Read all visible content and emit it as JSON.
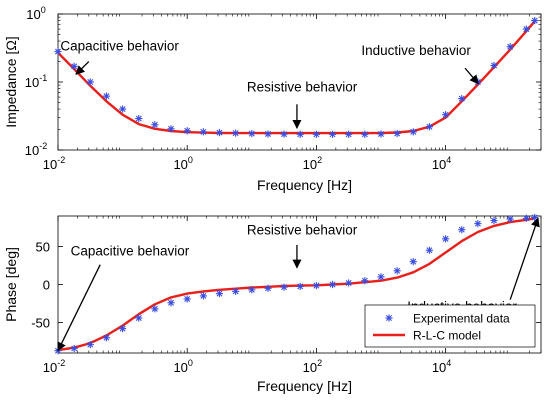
{
  "chart_data": [
    {
      "type": "line",
      "xscale": "log",
      "yscale": "log",
      "xlim": [
        0.01,
        300000
      ],
      "ylim": [
        0.01,
        1
      ],
      "xlabel": "Frequency [Hz]",
      "ylabel": "Impedance [Ω]",
      "xticks": [
        {
          "value": 0.01,
          "base": "10",
          "exp": "-2"
        },
        {
          "value": 1,
          "base": "10",
          "exp": "0"
        },
        {
          "value": 100,
          "base": "10",
          "exp": "2"
        },
        {
          "value": 10000,
          "base": "10",
          "exp": "4"
        }
      ],
      "yticks": [
        {
          "value": 0.01,
          "base": "10",
          "exp": "-2"
        },
        {
          "value": 0.1,
          "base": "10",
          "exp": "-1"
        },
        {
          "value": 1,
          "base": "10",
          "exp": "0"
        }
      ],
      "series": [
        {
          "name": "Experimental data",
          "style": "marker",
          "marker": "asterisk",
          "color": "#3a4de0",
          "x": [
            0.01,
            0.0178,
            0.0316,
            0.0562,
            0.1,
            0.178,
            0.316,
            0.562,
            1,
            1.78,
            3.16,
            5.62,
            10,
            17.8,
            31.6,
            56.2,
            100,
            178,
            316,
            562,
            1000,
            1780,
            3160,
            5620,
            10000,
            17800,
            31600,
            56200,
            100000,
            178000,
            240000
          ],
          "y": [
            0.28,
            0.17,
            0.1,
            0.062,
            0.04,
            0.029,
            0.0235,
            0.0205,
            0.0192,
            0.0185,
            0.018,
            0.0177,
            0.0174,
            0.0172,
            0.0171,
            0.017,
            0.017,
            0.017,
            0.017,
            0.017,
            0.0172,
            0.0175,
            0.0185,
            0.022,
            0.033,
            0.057,
            0.1,
            0.175,
            0.33,
            0.6,
            0.8
          ]
        },
        {
          "name": "R-L-C model",
          "style": "line",
          "color": "#e8201c",
          "x": [
            0.01,
            0.0178,
            0.0316,
            0.0562,
            0.1,
            0.178,
            0.316,
            0.562,
            1,
            1.78,
            3.16,
            5.62,
            10,
            17.8,
            31.6,
            56.2,
            100,
            178,
            316,
            562,
            1000,
            1780,
            3160,
            5620,
            10000,
            17800,
            31600,
            56200,
            100000,
            178000,
            240000
          ],
          "y": [
            0.27,
            0.155,
            0.088,
            0.052,
            0.033,
            0.024,
            0.0205,
            0.019,
            0.0183,
            0.018,
            0.0178,
            0.0177,
            0.0177,
            0.0177,
            0.0177,
            0.0177,
            0.0177,
            0.0177,
            0.0177,
            0.0177,
            0.0178,
            0.0181,
            0.019,
            0.022,
            0.03,
            0.052,
            0.092,
            0.165,
            0.3,
            0.56,
            0.78
          ]
        }
      ],
      "annotations": [
        {
          "text": "Capacitive behavior",
          "text_x": 0.09,
          "text_y": 0.29,
          "arrow_from": [
            0.03,
            0.2
          ],
          "arrow_to": [
            0.019,
            0.13
          ]
        },
        {
          "text": "Resistive behavior",
          "text_x": 60,
          "text_y": 0.072,
          "arrow_from": [
            50,
            0.047
          ],
          "arrow_to": [
            50,
            0.021
          ]
        },
        {
          "text": "Inductive behavior",
          "text_x": 3500,
          "text_y": 0.25,
          "arrow_from": [
            20000,
            0.16
          ],
          "arrow_to": [
            32000,
            0.095
          ]
        }
      ]
    },
    {
      "type": "line",
      "xscale": "log",
      "yscale": "linear",
      "xlim": [
        0.01,
        300000
      ],
      "ylim": [
        -90,
        90
      ],
      "xlabel": "Frequency [Hz]",
      "ylabel": "Phase [deg]",
      "xticks": [
        {
          "value": 0.01,
          "base": "10",
          "exp": "-2"
        },
        {
          "value": 1,
          "base": "10",
          "exp": "0"
        },
        {
          "value": 100,
          "base": "10",
          "exp": "2"
        },
        {
          "value": 10000,
          "base": "10",
          "exp": "4"
        }
      ],
      "yticks": [
        {
          "value": -50,
          "label": "-50"
        },
        {
          "value": 0,
          "label": "0"
        },
        {
          "value": 50,
          "label": "50"
        }
      ],
      "series": [
        {
          "name": "Experimental data",
          "style": "marker",
          "marker": "asterisk",
          "color": "#3a4de0",
          "x": [
            0.01,
            0.0178,
            0.0316,
            0.0562,
            0.1,
            0.178,
            0.316,
            0.562,
            1,
            1.78,
            3.16,
            5.62,
            10,
            17.8,
            31.6,
            56.2,
            100,
            178,
            316,
            562,
            1000,
            1780,
            3160,
            5620,
            10000,
            17800,
            31600,
            56200,
            100000,
            178000,
            240000
          ],
          "y": [
            -87,
            -84,
            -79,
            -70,
            -58,
            -44,
            -32,
            -24,
            -19,
            -15,
            -12,
            -9,
            -7,
            -5,
            -3.5,
            -2.5,
            -1.5,
            0,
            2,
            5,
            10,
            18,
            30,
            45,
            60,
            72,
            80,
            84,
            86,
            87,
            88
          ]
        },
        {
          "name": "R-L-C model",
          "style": "line",
          "color": "#e8201c",
          "x": [
            0.01,
            0.0178,
            0.0316,
            0.0562,
            0.1,
            0.178,
            0.316,
            0.562,
            1,
            1.78,
            3.16,
            5.62,
            10,
            17.8,
            31.6,
            56.2,
            100,
            178,
            316,
            562,
            1000,
            1780,
            3160,
            5620,
            10000,
            17800,
            31600,
            56200,
            100000,
            178000,
            240000
          ],
          "y": [
            -86,
            -83,
            -77,
            -67,
            -54,
            -39,
            -26,
            -17,
            -12,
            -9,
            -7,
            -5.5,
            -4,
            -3,
            -2,
            -1.5,
            -1,
            0,
            1,
            3,
            5,
            9,
            16,
            27,
            42,
            57,
            69,
            77,
            82,
            85,
            87
          ]
        }
      ],
      "annotations": [
        {
          "text": "Capacitive behavior",
          "text_x": 0.13,
          "text_y": 38,
          "arrow_from": [
            0.045,
            26
          ],
          "arrow_to": [
            0.01,
            -87
          ]
        },
        {
          "text": "Resistive behavior",
          "text_x": 60,
          "text_y": 66,
          "arrow_from": [
            50,
            52
          ],
          "arrow_to": [
            50,
            22
          ]
        },
        {
          "text": "Inductive behavior",
          "text_x": 18000,
          "text_y": -35,
          "arrow_from": [
            100000,
            -20
          ],
          "arrow_to": [
            270000,
            87
          ]
        }
      ],
      "legend": {
        "position": "bottom-right",
        "entries": [
          "Experimental data",
          "R-L-C model"
        ]
      }
    }
  ]
}
